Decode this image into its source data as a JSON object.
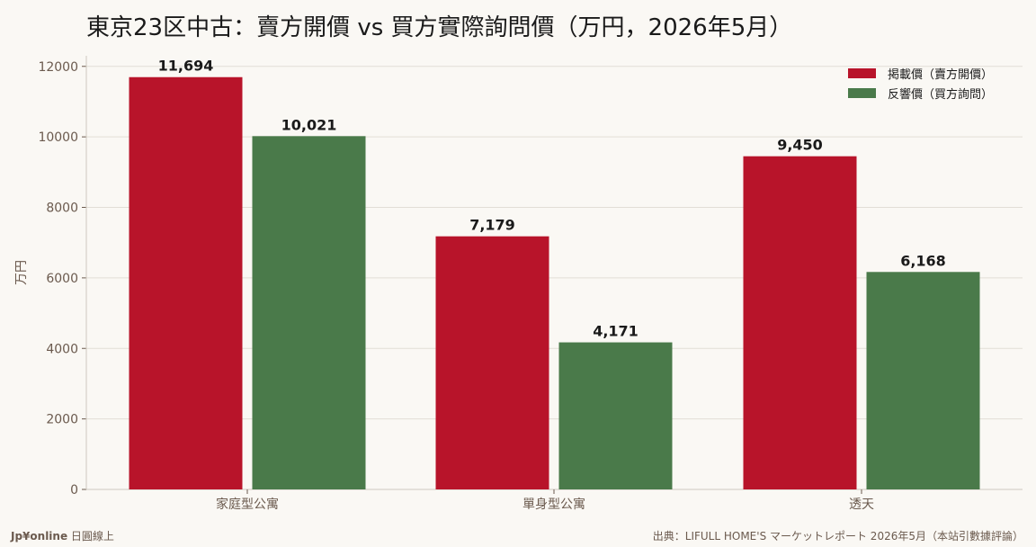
{
  "page": {
    "title": "東京23区中古：賣方開價 vs 買方實際詢問價（万円，2026年5月）",
    "footer_brand": "Jp¥online",
    "footer_brand_sub": " 日圓線上",
    "footer_source": "出典：LIFULL HOME'S マーケットレポート 2026年5月（本站引數據評論）"
  },
  "colors": {
    "listing": "#b8142a",
    "response": "#4a7a4a",
    "grid": "#e2ded6",
    "axis": "#6b5a4e"
  },
  "chart_data": {
    "type": "bar",
    "title": "東京23区中古：賣方開價 vs 買方實際詢問價（万円，2026年5月）",
    "xlabel": "",
    "ylabel": "万円",
    "categories": [
      "家庭型公寓",
      "單身型公寓",
      "透天"
    ],
    "series": [
      {
        "name": "掲載價（賣方開價）",
        "values": [
          11694,
          7179,
          9450
        ],
        "labels": [
          "11,694",
          "7,179",
          "9,450"
        ],
        "color": "#b8142a"
      },
      {
        "name": "反響價（買方詢問）",
        "values": [
          10021,
          4171,
          6168
        ],
        "labels": [
          "10,021",
          "4,171",
          "6,168"
        ],
        "color": "#4a7a4a"
      }
    ],
    "ylim": [
      0,
      12300
    ],
    "yticks": [
      0,
      2000,
      4000,
      6000,
      8000,
      10000,
      12000
    ],
    "grid": true,
    "legend_position": "top-right"
  }
}
